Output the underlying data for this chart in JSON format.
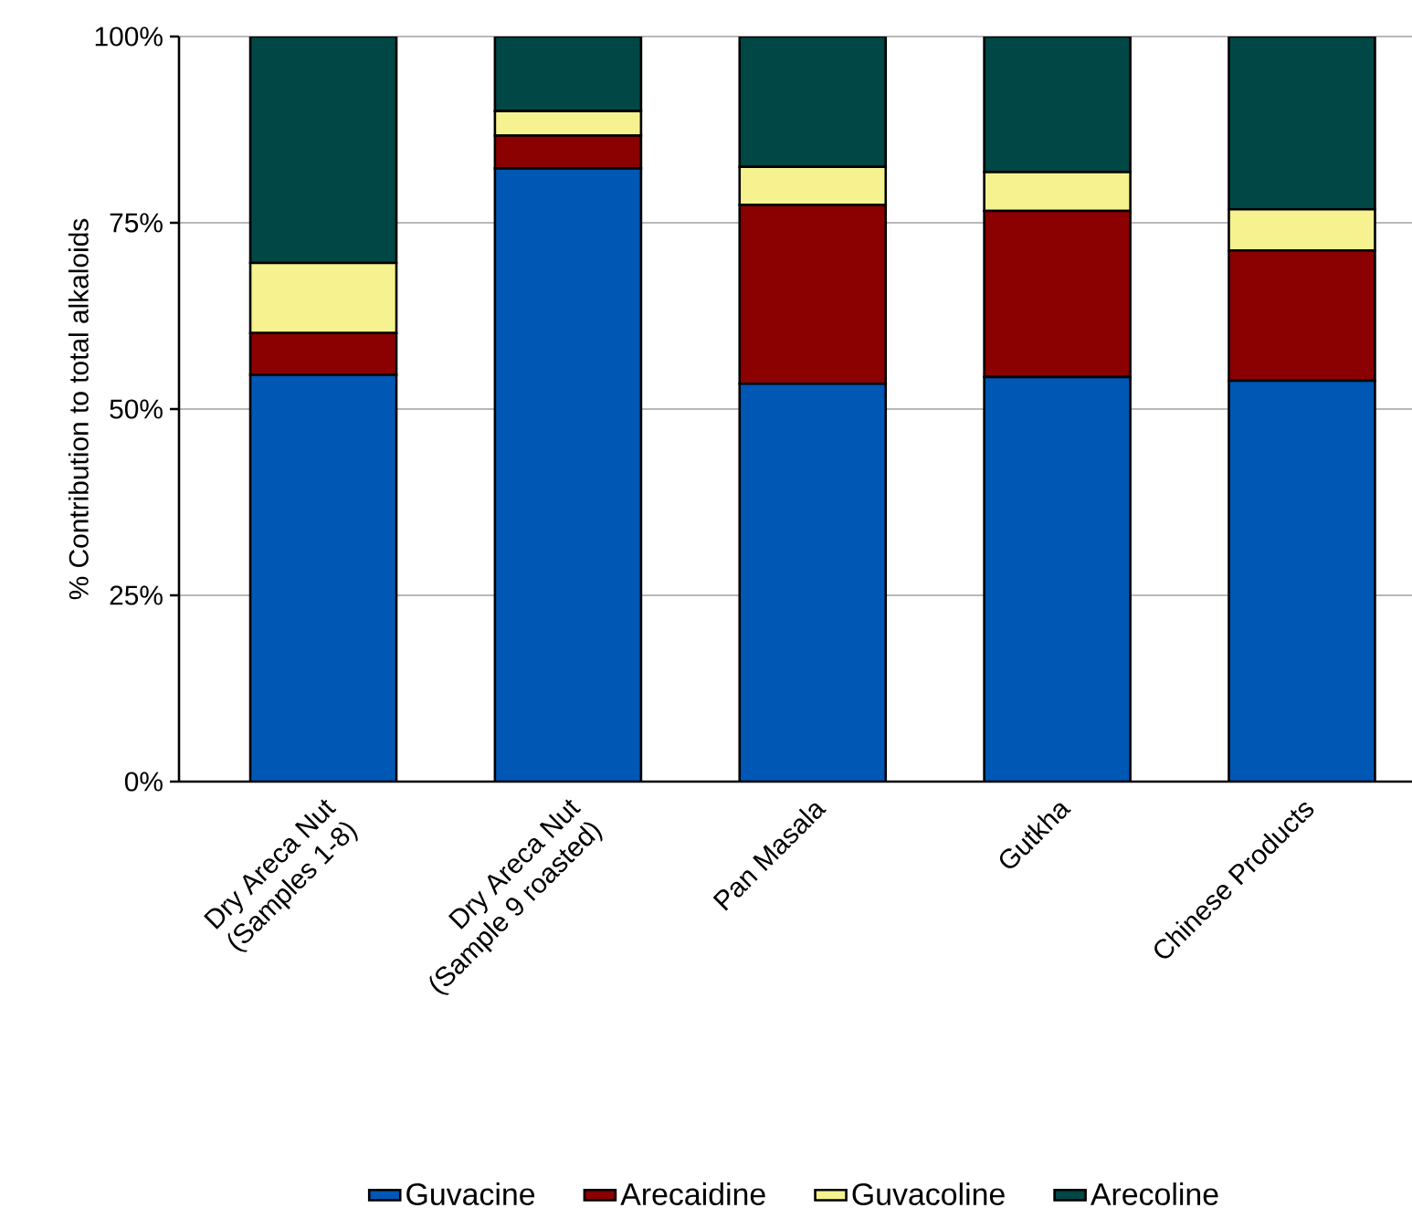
{
  "chart_data": {
    "type": "bar",
    "stacked": true,
    "ylabel": "% Contribution to total alkaloids",
    "categories": [
      "Dry Areca Nut (Samples 1-8)",
      "Dry Areca Nut (Sample 9 roasted)",
      "Pan Masala",
      "Gutkha",
      "Chinese Products"
    ],
    "series": [
      {
        "name": "Guvacine",
        "color": "#0057b4",
        "values": [
          54.6,
          82.3,
          53.4,
          54.3,
          53.8
        ]
      },
      {
        "name": "Arecaidine",
        "color": "#8b0000",
        "values": [
          5.6,
          4.4,
          24.0,
          22.3,
          17.5
        ]
      },
      {
        "name": "Guvacoline",
        "color": "#f5f28f",
        "values": [
          9.4,
          3.3,
          5.1,
          5.2,
          5.5
        ]
      },
      {
        "name": "Arecoline",
        "color": "#004745",
        "values": [
          30.4,
          10.0,
          17.5,
          18.2,
          23.2
        ]
      }
    ],
    "ylim": [
      0,
      100
    ],
    "yticks": [
      {
        "value": 0,
        "label": "0%"
      },
      {
        "value": 25,
        "label": "25%"
      },
      {
        "value": 50,
        "label": "50%"
      },
      {
        "value": 75,
        "label": "75%"
      },
      {
        "value": 100,
        "label": "100%"
      }
    ],
    "grid": "y",
    "legend": "bottom"
  }
}
